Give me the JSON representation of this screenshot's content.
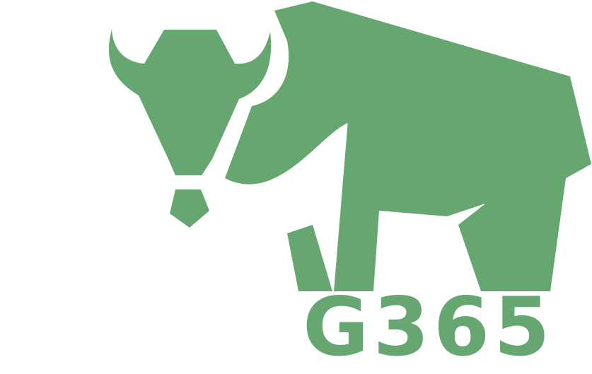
{
  "logo": {
    "wordmark": "G365",
    "icon": "bison-icon",
    "color": "#66a670",
    "background": "#ffffff"
  }
}
